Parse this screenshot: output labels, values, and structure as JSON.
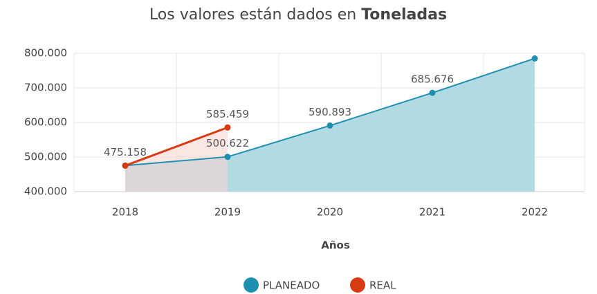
{
  "chart_data": {
    "type": "area",
    "title": "Los valores están dados en",
    "title_bold": "Toneladas",
    "x_label": "Años",
    "categories": [
      "2018",
      "2019",
      "2020",
      "2021",
      "2022"
    ],
    "series": [
      {
        "name": "PLANEADO",
        "color": "#1f8fb0",
        "fill": "#b2dae3",
        "values": [
          475158,
          500622,
          590893,
          685676,
          785000
        ],
        "value_labels": [
          null,
          "500.622",
          "590.893",
          "685.676",
          null
        ]
      },
      {
        "name": "REAL",
        "color": "#d83a12",
        "fill": "#f7d6d0",
        "values": [
          475158,
          585459,
          null,
          null,
          null
        ],
        "value_labels": [
          "475.158",
          "585.459",
          null,
          null,
          null
        ]
      }
    ],
    "ylim": [
      400000,
      800000
    ],
    "yticks": [
      {
        "value": 400000,
        "label": "400.000"
      },
      {
        "value": 500000,
        "label": "500.000"
      },
      {
        "value": 600000,
        "label": "600.000"
      },
      {
        "value": 700000,
        "label": "700.000"
      },
      {
        "value": 800000,
        "label": "800.000"
      }
    ],
    "grid": true,
    "legend": "bottom"
  }
}
